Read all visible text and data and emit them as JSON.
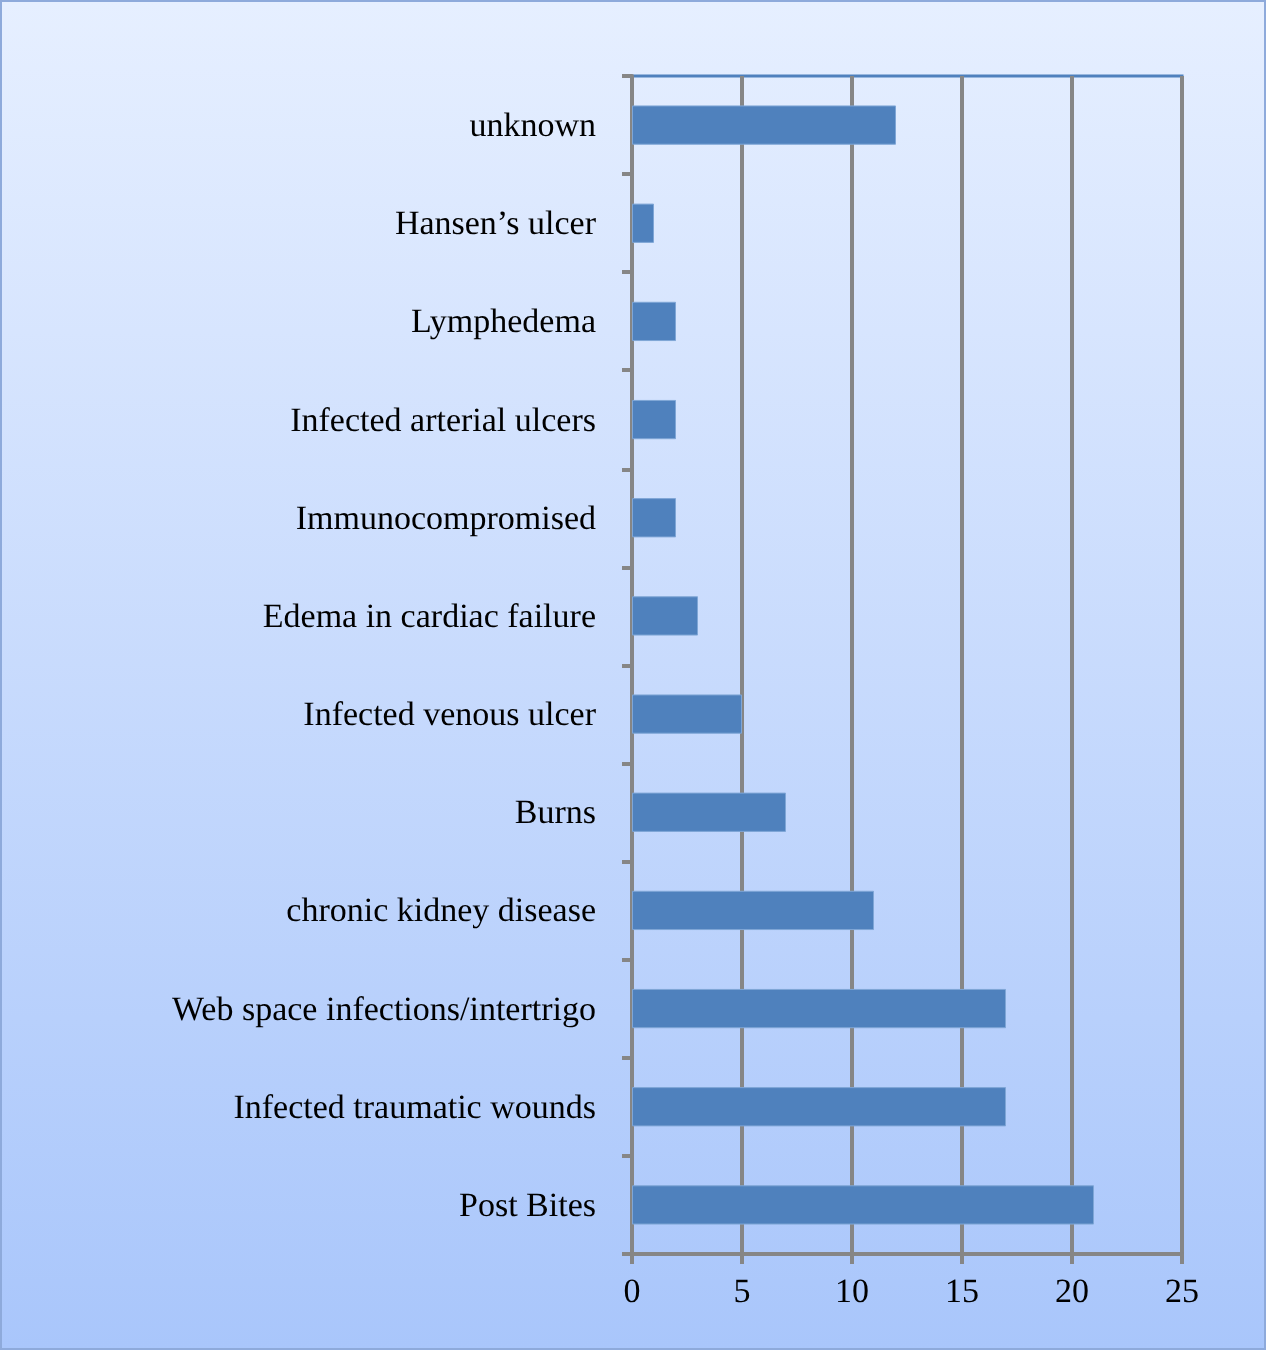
{
  "chart_data": {
    "type": "bar",
    "orientation": "horizontal",
    "categories": [
      "unknown",
      "Hansen’s ulcer",
      "Lymphedema",
      "Infected arterial ulcers",
      "Immunocompromised",
      "Edema in cardiac failure",
      "Infected venous ulcer",
      "Burns",
      "chronic kidney disease",
      "Web space infections/intertrigo",
      "Infected traumatic wounds",
      "Post Bites"
    ],
    "values": [
      12,
      1,
      2,
      2,
      2,
      3,
      5,
      7,
      11,
      17,
      17,
      21
    ],
    "color": "#4f81bd",
    "xlim": [
      0,
      25
    ],
    "xticks": [
      0,
      5,
      10,
      15,
      20,
      25
    ],
    "grid": "x"
  }
}
